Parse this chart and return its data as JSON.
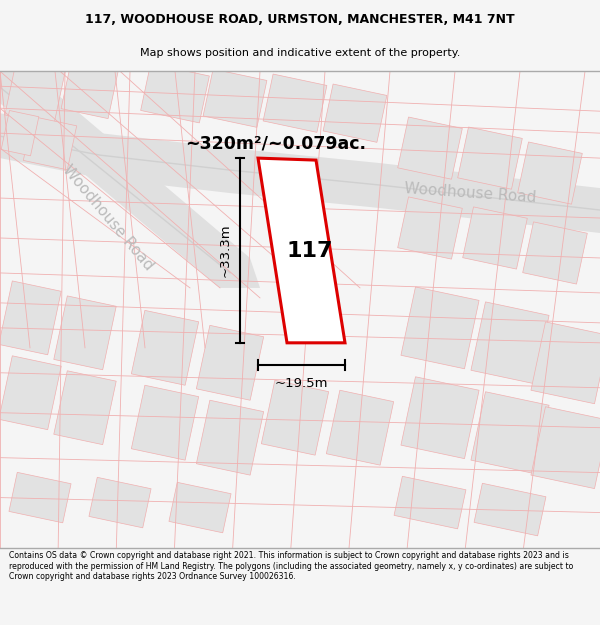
{
  "title_line1": "117, WOODHOUSE ROAD, URMSTON, MANCHESTER, M41 7NT",
  "title_line2": "Map shows position and indicative extent of the property.",
  "footer_text": "Contains OS data © Crown copyright and database right 2021. This information is subject to Crown copyright and database rights 2023 and is reproduced with the permission of HM Land Registry. The polygons (including the associated geometry, namely x, y co-ordinates) are subject to Crown copyright and database rights 2023 Ordnance Survey 100026316.",
  "area_label": "~320m²/~0.079ac.",
  "road_label_top": "Woodhouse Road",
  "road_label_left": "Woodhouse Road",
  "house_number": "117",
  "width_label": "~19.5m",
  "height_label": "~33.3m",
  "bg_color": "#f5f5f5",
  "map_bg": "#eeeeee",
  "plot_edge_color": "#dd0000",
  "road_fill": "#e8e8e8",
  "road_edge": "#c8c8c8",
  "bld_fill": "#e2e2e2",
  "grid_color": "#f0b0b0",
  "road_label_color": "#bbbbbb",
  "divider_color": "#aaaaaa"
}
